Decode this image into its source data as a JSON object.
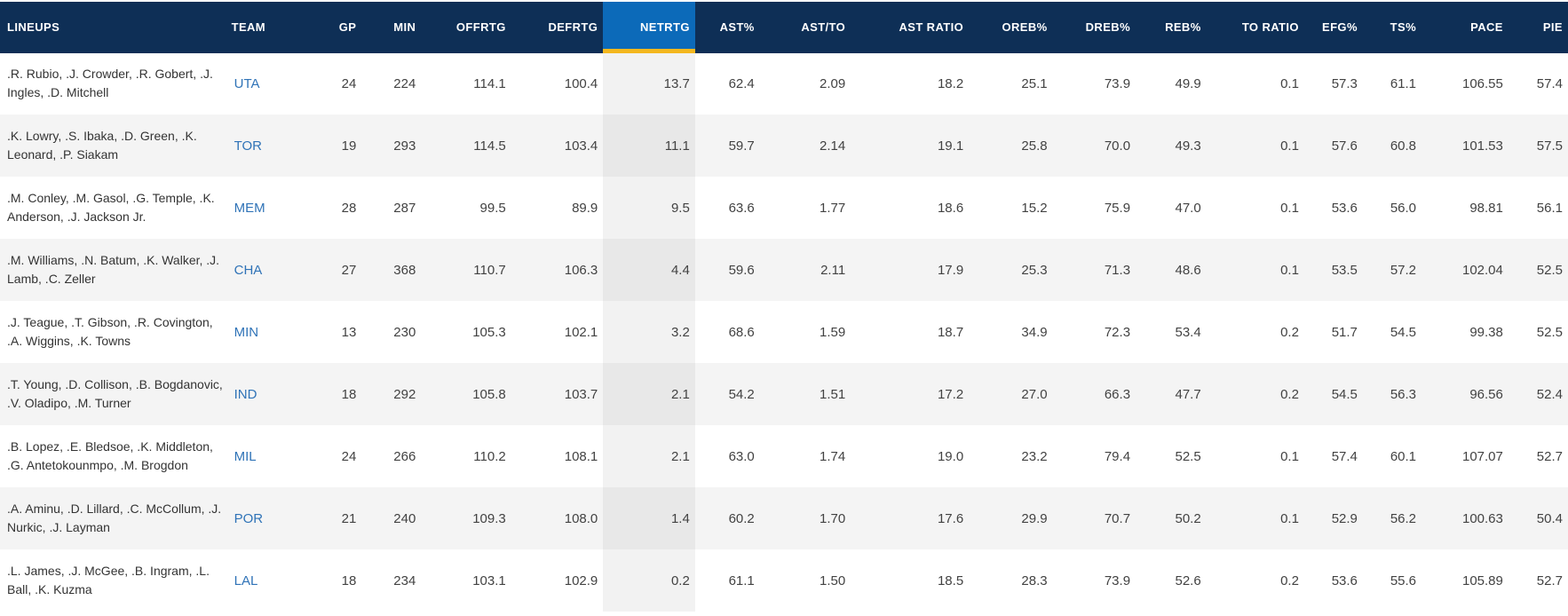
{
  "columns": [
    {
      "key": "lineups",
      "label": "LINEUPS"
    },
    {
      "key": "team",
      "label": "TEAM"
    },
    {
      "key": "gp",
      "label": "GP"
    },
    {
      "key": "min",
      "label": "MIN"
    },
    {
      "key": "offrtg",
      "label": "OFFRTG"
    },
    {
      "key": "defrtg",
      "label": "DEFRTG"
    },
    {
      "key": "netrtg",
      "label": "NETRTG"
    },
    {
      "key": "ast_pct",
      "label": "AST%"
    },
    {
      "key": "ast_to",
      "label": "AST/TO"
    },
    {
      "key": "ast_ratio",
      "label": "AST RATIO"
    },
    {
      "key": "oreb_pct",
      "label": "OREB%"
    },
    {
      "key": "dreb_pct",
      "label": "DREB%"
    },
    {
      "key": "reb_pct",
      "label": "REB%"
    },
    {
      "key": "to_ratio",
      "label": "TO RATIO"
    },
    {
      "key": "efg_pct",
      "label": "EFG%"
    },
    {
      "key": "ts_pct",
      "label": "TS%"
    },
    {
      "key": "pace",
      "label": "PACE"
    },
    {
      "key": "pie",
      "label": "PIE"
    }
  ],
  "sorted_column": "netrtg",
  "colors": {
    "header_bg": "#0e2f56",
    "sorted_header_bg": "#0c6ab9",
    "sort_indicator": "#f4b71e",
    "team_link": "#2f73b7"
  },
  "rows": [
    {
      "lineups": ".R. Rubio, .J. Crowder, .R. Gobert, .J. Ingles, .D. Mitchell",
      "team": "UTA",
      "gp": "24",
      "min": "224",
      "offrtg": "114.1",
      "defrtg": "100.4",
      "netrtg": "13.7",
      "ast_pct": "62.4",
      "ast_to": "2.09",
      "ast_ratio": "18.2",
      "oreb_pct": "25.1",
      "dreb_pct": "73.9",
      "reb_pct": "49.9",
      "to_ratio": "0.1",
      "efg_pct": "57.3",
      "ts_pct": "61.1",
      "pace": "106.55",
      "pie": "57.4"
    },
    {
      "lineups": ".K. Lowry, .S. Ibaka, .D. Green, .K. Leonard, .P. Siakam",
      "team": "TOR",
      "gp": "19",
      "min": "293",
      "offrtg": "114.5",
      "defrtg": "103.4",
      "netrtg": "11.1",
      "ast_pct": "59.7",
      "ast_to": "2.14",
      "ast_ratio": "19.1",
      "oreb_pct": "25.8",
      "dreb_pct": "70.0",
      "reb_pct": "49.3",
      "to_ratio": "0.1",
      "efg_pct": "57.6",
      "ts_pct": "60.8",
      "pace": "101.53",
      "pie": "57.5"
    },
    {
      "lineups": ".M. Conley, .M. Gasol, .G. Temple, .K. Anderson, .J. Jackson Jr.",
      "team": "MEM",
      "gp": "28",
      "min": "287",
      "offrtg": "99.5",
      "defrtg": "89.9",
      "netrtg": "9.5",
      "ast_pct": "63.6",
      "ast_to": "1.77",
      "ast_ratio": "18.6",
      "oreb_pct": "15.2",
      "dreb_pct": "75.9",
      "reb_pct": "47.0",
      "to_ratio": "0.1",
      "efg_pct": "53.6",
      "ts_pct": "56.0",
      "pace": "98.81",
      "pie": "56.1"
    },
    {
      "lineups": ".M. Williams, .N. Batum, .K. Walker, .J. Lamb, .C. Zeller",
      "team": "CHA",
      "gp": "27",
      "min": "368",
      "offrtg": "110.7",
      "defrtg": "106.3",
      "netrtg": "4.4",
      "ast_pct": "59.6",
      "ast_to": "2.11",
      "ast_ratio": "17.9",
      "oreb_pct": "25.3",
      "dreb_pct": "71.3",
      "reb_pct": "48.6",
      "to_ratio": "0.1",
      "efg_pct": "53.5",
      "ts_pct": "57.2",
      "pace": "102.04",
      "pie": "52.5"
    },
    {
      "lineups": ".J. Teague, .T. Gibson, .R. Covington, .A. Wiggins, .K. Towns",
      "team": "MIN",
      "gp": "13",
      "min": "230",
      "offrtg": "105.3",
      "defrtg": "102.1",
      "netrtg": "3.2",
      "ast_pct": "68.6",
      "ast_to": "1.59",
      "ast_ratio": "18.7",
      "oreb_pct": "34.9",
      "dreb_pct": "72.3",
      "reb_pct": "53.4",
      "to_ratio": "0.2",
      "efg_pct": "51.7",
      "ts_pct": "54.5",
      "pace": "99.38",
      "pie": "52.5"
    },
    {
      "lineups": ".T. Young, .D. Collison, .B. Bogdanovic, .V. Oladipo, .M. Turner",
      "team": "IND",
      "gp": "18",
      "min": "292",
      "offrtg": "105.8",
      "defrtg": "103.7",
      "netrtg": "2.1",
      "ast_pct": "54.2",
      "ast_to": "1.51",
      "ast_ratio": "17.2",
      "oreb_pct": "27.0",
      "dreb_pct": "66.3",
      "reb_pct": "47.7",
      "to_ratio": "0.2",
      "efg_pct": "54.5",
      "ts_pct": "56.3",
      "pace": "96.56",
      "pie": "52.4"
    },
    {
      "lineups": ".B. Lopez, .E. Bledsoe, .K. Middleton, .G. Antetokounmpo, .M. Brogdon",
      "team": "MIL",
      "gp": "24",
      "min": "266",
      "offrtg": "110.2",
      "defrtg": "108.1",
      "netrtg": "2.1",
      "ast_pct": "63.0",
      "ast_to": "1.74",
      "ast_ratio": "19.0",
      "oreb_pct": "23.2",
      "dreb_pct": "79.4",
      "reb_pct": "52.5",
      "to_ratio": "0.1",
      "efg_pct": "57.4",
      "ts_pct": "60.1",
      "pace": "107.07",
      "pie": "52.7"
    },
    {
      "lineups": ".A. Aminu, .D. Lillard, .C. McCollum, .J. Nurkic, .J. Layman",
      "team": "POR",
      "gp": "21",
      "min": "240",
      "offrtg": "109.3",
      "defrtg": "108.0",
      "netrtg": "1.4",
      "ast_pct": "60.2",
      "ast_to": "1.70",
      "ast_ratio": "17.6",
      "oreb_pct": "29.9",
      "dreb_pct": "70.7",
      "reb_pct": "50.2",
      "to_ratio": "0.1",
      "efg_pct": "52.9",
      "ts_pct": "56.2",
      "pace": "100.63",
      "pie": "50.4"
    },
    {
      "lineups": ".L. James, .J. McGee, .B. Ingram, .L. Ball, .K. Kuzma",
      "team": "LAL",
      "gp": "18",
      "min": "234",
      "offrtg": "103.1",
      "defrtg": "102.9",
      "netrtg": "0.2",
      "ast_pct": "61.1",
      "ast_to": "1.50",
      "ast_ratio": "18.5",
      "oreb_pct": "28.3",
      "dreb_pct": "73.9",
      "reb_pct": "52.6",
      "to_ratio": "0.2",
      "efg_pct": "53.6",
      "ts_pct": "55.6",
      "pace": "105.89",
      "pie": "52.7"
    }
  ]
}
